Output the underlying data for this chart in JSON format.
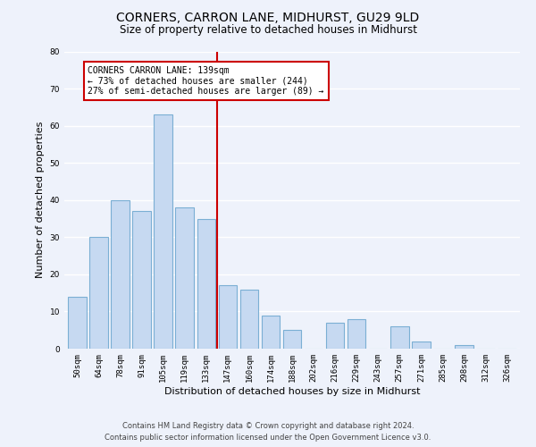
{
  "title": "CORNERS, CARRON LANE, MIDHURST, GU29 9LD",
  "subtitle": "Size of property relative to detached houses in Midhurst",
  "xlabel": "Distribution of detached houses by size in Midhurst",
  "ylabel": "Number of detached properties",
  "bar_labels": [
    "50sqm",
    "64sqm",
    "78sqm",
    "91sqm",
    "105sqm",
    "119sqm",
    "133sqm",
    "147sqm",
    "160sqm",
    "174sqm",
    "188sqm",
    "202sqm",
    "216sqm",
    "229sqm",
    "243sqm",
    "257sqm",
    "271sqm",
    "285sqm",
    "298sqm",
    "312sqm",
    "326sqm"
  ],
  "bar_heights": [
    14,
    30,
    40,
    37,
    63,
    38,
    35,
    17,
    16,
    9,
    5,
    0,
    7,
    8,
    0,
    6,
    2,
    0,
    1,
    0,
    0
  ],
  "bar_color": "#c6d9f1",
  "bar_edge_color": "#7bafd4",
  "ylim": [
    0,
    80
  ],
  "yticks": [
    0,
    10,
    20,
    30,
    40,
    50,
    60,
    70,
    80
  ],
  "vline_x": 7.0,
  "vline_color": "#cc0000",
  "annotation_title": "CORNERS CARRON LANE: 139sqm",
  "annotation_line1": "← 73% of detached houses are smaller (244)",
  "annotation_line2": "27% of semi-detached houses are larger (89) →",
  "annotation_box_color": "#ffffff",
  "annotation_box_edge": "#cc0000",
  "footer_line1": "Contains HM Land Registry data © Crown copyright and database right 2024.",
  "footer_line2": "Contains public sector information licensed under the Open Government Licence v3.0.",
  "bg_color": "#eef2fb",
  "grid_color": "#ffffff",
  "title_fontsize": 10,
  "subtitle_fontsize": 8.5,
  "axis_label_fontsize": 8,
  "tick_fontsize": 6.5,
  "footer_fontsize": 6,
  "annot_fontsize": 7
}
